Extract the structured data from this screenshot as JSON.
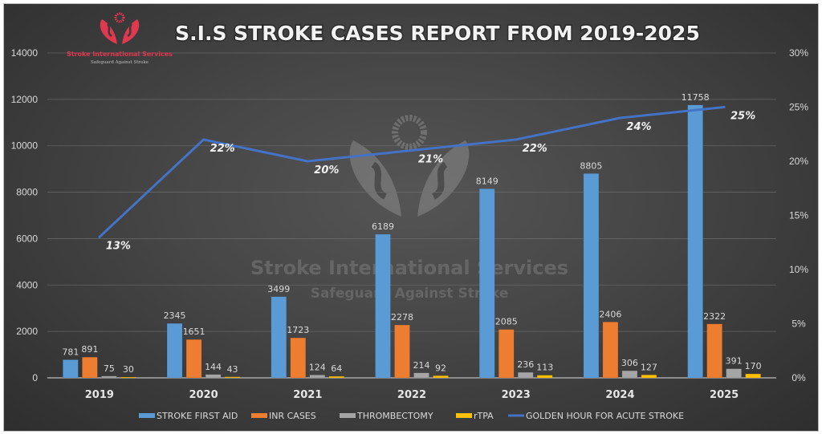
{
  "chart_data": {
    "type": "bar",
    "title": "S.I.S STROKE CASES REPORT FROM 2019-2025",
    "categories": [
      "2019",
      "2020",
      "2021",
      "2022",
      "2023",
      "2024",
      "2025"
    ],
    "series": [
      {
        "name": "STROKE FIRST AID",
        "type": "bar",
        "axis": "left",
        "color": "#5b9bd5",
        "values": [
          781,
          2345,
          3499,
          6189,
          8149,
          8805,
          11758
        ]
      },
      {
        "name": "INR CASES",
        "type": "bar",
        "axis": "left",
        "color": "#ed7d31",
        "values": [
          891,
          1651,
          1723,
          2278,
          2085,
          2406,
          2322
        ]
      },
      {
        "name": "THROMBECTOMY",
        "type": "bar",
        "axis": "left",
        "color": "#a5a5a5",
        "values": [
          75,
          144,
          124,
          214,
          236,
          306,
          391
        ]
      },
      {
        "name": "rTPA",
        "type": "bar",
        "axis": "left",
        "color": "#ffc000",
        "values": [
          30,
          43,
          64,
          92,
          113,
          127,
          170
        ]
      },
      {
        "name": "GOLDEN HOUR FOR ACUTE STROKE",
        "type": "line",
        "axis": "right",
        "color": "#4472c4",
        "values": [
          13,
          22,
          20,
          21,
          22,
          24,
          25
        ],
        "labels": [
          "13%",
          "22%",
          "20%",
          "21%",
          "22%",
          "24%",
          "25%"
        ]
      }
    ],
    "y_left": {
      "min": 0,
      "max": 14000,
      "step": 2000,
      "ticks": [
        "0",
        "2000",
        "4000",
        "6000",
        "8000",
        "10000",
        "12000",
        "14000"
      ]
    },
    "y_right": {
      "min": 0,
      "max": 30,
      "step": 5,
      "ticks": [
        "0%",
        "5%",
        "10%",
        "15%",
        "20%",
        "25%",
        "30%"
      ]
    },
    "xlabel": "",
    "ylabel": "",
    "grid": true,
    "legend_position": "bottom"
  },
  "branding": {
    "logo_name": "Stroke International Services",
    "logo_tagline": "Safeguard Against Stroke",
    "watermark_name": "Stroke International Services",
    "watermark_tagline": "Safeguard Against Stroke",
    "logo_color": "#e0384f"
  }
}
